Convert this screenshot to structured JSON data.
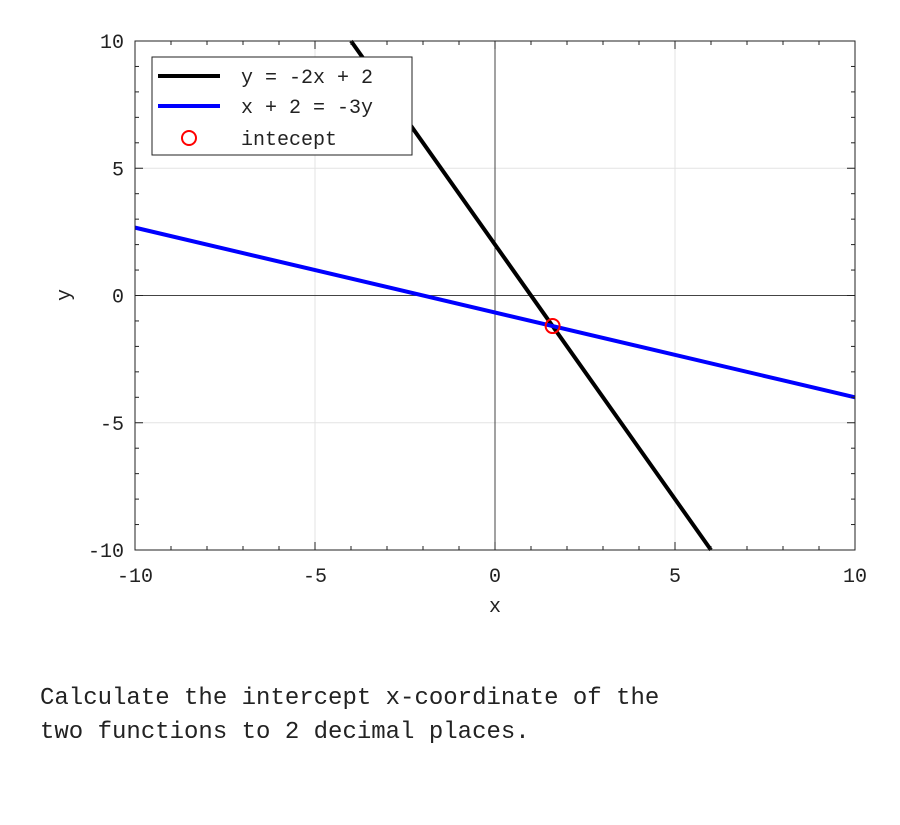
{
  "chart_data": {
    "type": "line",
    "xlabel": "x",
    "ylabel": "y",
    "xlim": [
      -10,
      10
    ],
    "ylim": [
      -10,
      10
    ],
    "xticks": [
      -10,
      -5,
      0,
      5,
      10
    ],
    "yticks": [
      -10,
      -5,
      0,
      5,
      10
    ],
    "grid": true,
    "legend_position": "top-left",
    "series": [
      {
        "name": "y = -2x + 2",
        "color": "#000000",
        "x": [
          -4,
          6
        ],
        "y": [
          10,
          -10
        ]
      },
      {
        "name": "x + 2 = -3y",
        "color": "#0000ff",
        "x": [
          -10,
          10
        ],
        "y": [
          2.667,
          -4
        ]
      }
    ],
    "points": [
      {
        "name": "intecept",
        "color": "#ff0000",
        "marker": "open-circle",
        "x": 1.6,
        "y": -1.2
      }
    ]
  },
  "question": "Calculate the intercept x-coordinate of the\ntwo functions to 2 decimal places."
}
